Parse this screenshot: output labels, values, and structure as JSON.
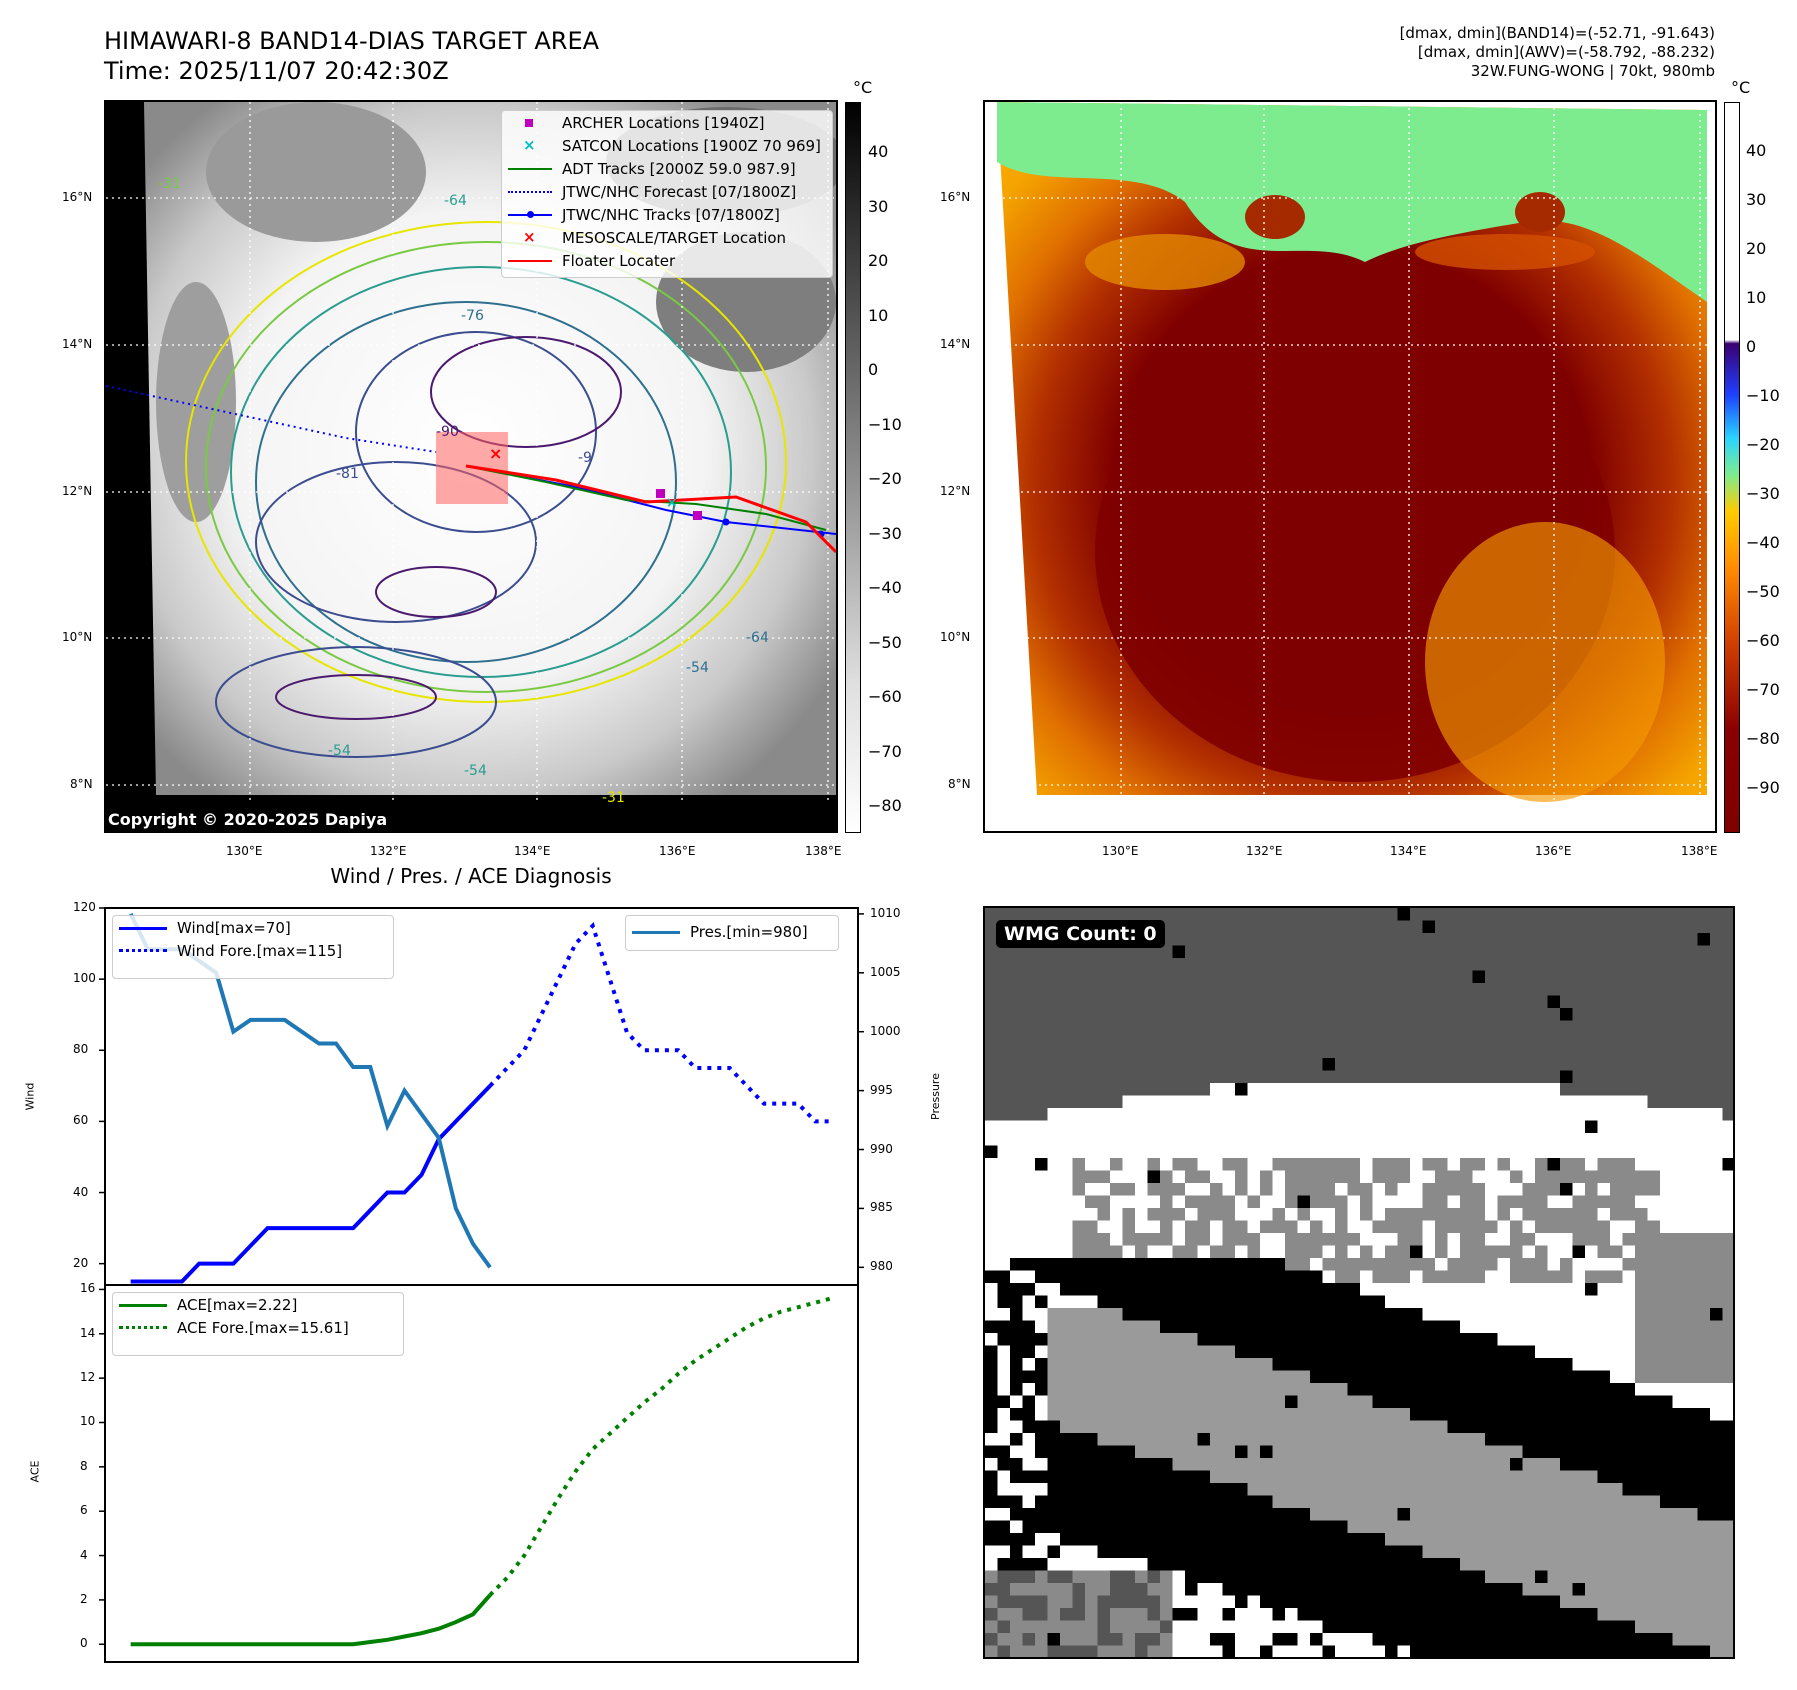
{
  "header": {
    "title_line1": "HIMAWARI-8 BAND14-DIAS TARGET AREA",
    "title_line2": "Time: 2025/11/07 20:42:30Z",
    "info_line1": "[dmax, dmin](BAND14)=(-52.71, -91.643)",
    "info_line2": "[dmax, dmin](AWV)=(-58.792, -88.232)",
    "info_line3": "32W.FUNG-WONG | 70kt, 980mb"
  },
  "map": {
    "lat_labels": [
      "16°N",
      "14°N",
      "12°N",
      "10°N",
      "8°N"
    ],
    "lon_labels": [
      "130°E",
      "132°E",
      "134°E",
      "136°E",
      "138°E"
    ],
    "copyright": "Copyright © 2020-2025 Dapiya",
    "contour_labels": [
      "-31",
      "-64",
      "-76",
      "-90",
      "-81",
      "-54",
      "-64",
      "-54",
      "-54",
      "-31",
      "-9"
    ],
    "legend": [
      {
        "label": "ARCHER Locations [1940Z]",
        "color": "#bf00bf",
        "symbol": "square"
      },
      {
        "label": "SATCON Locations [1900Z 70 969]",
        "color": "#00bfbf",
        "symbol": "x"
      },
      {
        "label": "ADT Tracks [2000Z 59.0 987.9]",
        "color": "#008000",
        "symbol": "line"
      },
      {
        "label": "JTWC/NHC Forecast [07/1800Z]",
        "color": "#0000ff",
        "symbol": "dotted"
      },
      {
        "label": "JTWC/NHC Tracks [07/1800Z]",
        "color": "#0000ff",
        "symbol": "line-dot"
      },
      {
        "label": "MESOSCALE/TARGET Location",
        "color": "#ff0000",
        "symbol": "x"
      },
      {
        "label": "Floater Locater",
        "color": "#ff0000",
        "symbol": "line"
      }
    ],
    "cbar_unit": "°C",
    "cbar_gray_ticks": [
      "40",
      "30",
      "20",
      "10",
      "0",
      "−10",
      "−20",
      "−30",
      "−40",
      "−50",
      "−60",
      "−70",
      "−80"
    ],
    "cbar_color_ticks": [
      "40",
      "30",
      "20",
      "10",
      "0",
      "−10",
      "−20",
      "−30",
      "−40",
      "−50",
      "−60",
      "−70",
      "−80",
      "−90"
    ]
  },
  "wmg": {
    "label": "WMG Count: 0"
  },
  "chart_data": [
    {
      "type": "line",
      "title": "Wind / Pres. / ACE Diagnosis",
      "ylabel": "Wind",
      "ylabel_right": "Pressure",
      "ylim": [
        14,
        120
      ],
      "ylim_right": [
        978.5,
        1010.5
      ],
      "yticks": [
        "120",
        "100",
        "80",
        "60",
        "40",
        "20"
      ],
      "yticks_right": [
        "1010",
        "1005",
        "1000",
        "995",
        "990",
        "985",
        "980"
      ],
      "series": [
        {
          "name": "Wind[max=70]",
          "color": "#0000ff",
          "style": "solid",
          "x": [
            0,
            1,
            2,
            3,
            4,
            5,
            6,
            7,
            8,
            9,
            10,
            11,
            12,
            13,
            14,
            15,
            16,
            17,
            18,
            19,
            20,
            21
          ],
          "values": [
            15,
            15,
            15,
            15,
            20,
            20,
            20,
            25,
            30,
            30,
            30,
            30,
            30,
            30,
            35,
            40,
            40,
            45,
            55,
            60,
            65,
            70
          ]
        },
        {
          "name": "Wind Fore.[max=115]",
          "color": "#0000ff",
          "style": "dotted",
          "x": [
            21,
            22,
            23,
            24,
            25,
            26,
            27,
            28,
            29,
            30,
            31,
            32,
            33,
            34,
            35,
            36,
            37,
            38,
            39,
            40,
            41
          ],
          "values": [
            70,
            75,
            80,
            90,
            100,
            110,
            115,
            100,
            85,
            80,
            80,
            80,
            75,
            75,
            75,
            70,
            65,
            65,
            65,
            60,
            60
          ]
        },
        {
          "name": "Pres.[min=980]",
          "color": "#1f77b4",
          "style": "solid",
          "axis": "right",
          "x": [
            0,
            1,
            2,
            3,
            4,
            5,
            6,
            7,
            8,
            9,
            10,
            11,
            12,
            13,
            14,
            15,
            16,
            17,
            18,
            19,
            20,
            21
          ],
          "values": [
            1010,
            1007,
            1007,
            1007,
            1006,
            1005,
            1000,
            1001,
            1001,
            1001,
            1000,
            999,
            999,
            997,
            997,
            992,
            995,
            993,
            991,
            985,
            982,
            980
          ]
        }
      ]
    },
    {
      "type": "line",
      "ylabel": "ACE",
      "ylim": [
        -0.8,
        16.2
      ],
      "yticks": [
        "16",
        "14",
        "12",
        "10",
        "8",
        "6",
        "4",
        "2",
        "0"
      ],
      "series": [
        {
          "name": "ACE[max=2.22]",
          "color": "#008000",
          "style": "solid",
          "x": [
            0,
            2,
            4,
            6,
            8,
            10,
            12,
            13,
            14,
            15,
            16,
            17,
            18,
            19,
            20,
            21
          ],
          "values": [
            0,
            0,
            0,
            0,
            0,
            0,
            0,
            0,
            0.1,
            0.2,
            0.35,
            0.5,
            0.7,
            1.0,
            1.35,
            2.22
          ]
        },
        {
          "name": "ACE Fore.[max=15.61]",
          "color": "#008000",
          "style": "dotted",
          "x": [
            21,
            22,
            23,
            24,
            25,
            26,
            27,
            28,
            29,
            30,
            31,
            32,
            33,
            34,
            35,
            36,
            37,
            38,
            39,
            40,
            41
          ],
          "values": [
            2.22,
            3.0,
            4.0,
            5.3,
            6.6,
            7.8,
            8.8,
            9.5,
            10.2,
            10.9,
            11.5,
            12.2,
            12.8,
            13.3,
            13.8,
            14.3,
            14.7,
            15.0,
            15.2,
            15.4,
            15.61
          ]
        }
      ]
    }
  ]
}
